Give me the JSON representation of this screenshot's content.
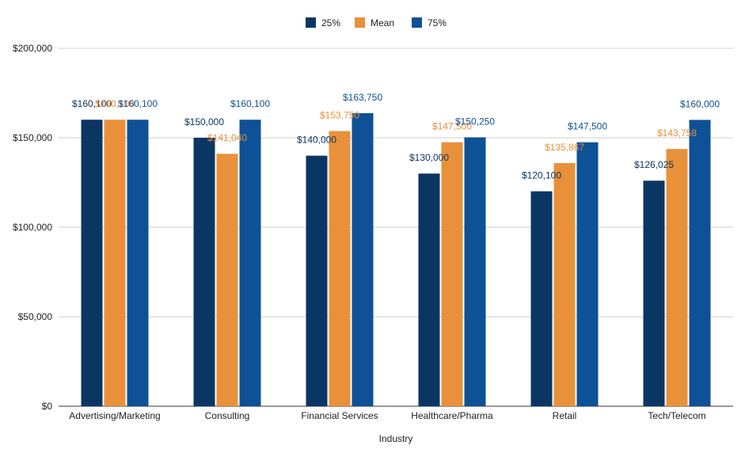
{
  "chart_data": {
    "type": "bar",
    "title": "",
    "xlabel": "Industry",
    "ylabel": "",
    "ylim": [
      0,
      200000
    ],
    "yticks": [
      0,
      50000,
      100000,
      150000,
      200000
    ],
    "ytick_labels": [
      "$0",
      "$50,000",
      "$100,000",
      "$150,000",
      "$200,000"
    ],
    "grid": true,
    "legend_position": "top",
    "categories": [
      "Advertising/Marketing",
      "Consulting",
      "Financial Services",
      "Healthcare/Pharma",
      "Retail",
      "Tech/Telecom"
    ],
    "series": [
      {
        "name": "25%",
        "color": "#0b3664",
        "values": [
          160100,
          150000,
          140000,
          130000,
          120100,
          126025
        ],
        "labels": [
          "$160,100",
          "$150,000",
          "$140,000",
          "$130,000",
          "$120,100",
          "$126,025"
        ]
      },
      {
        "name": "Mean",
        "color": "#e8913a",
        "values": [
          160100,
          141040,
          153750,
          147500,
          135867,
          143758
        ],
        "labels": [
          "$160,100",
          "$141,040",
          "$153,750",
          "$147,500",
          "$135,867",
          "$143,758"
        ]
      },
      {
        "name": "75%",
        "color": "#0e5196",
        "values": [
          160100,
          160100,
          163750,
          150250,
          147500,
          160000
        ],
        "labels": [
          "$160,100",
          "$160,100",
          "$163,750",
          "$150,250",
          "$147,500",
          "$160,000"
        ]
      }
    ]
  }
}
